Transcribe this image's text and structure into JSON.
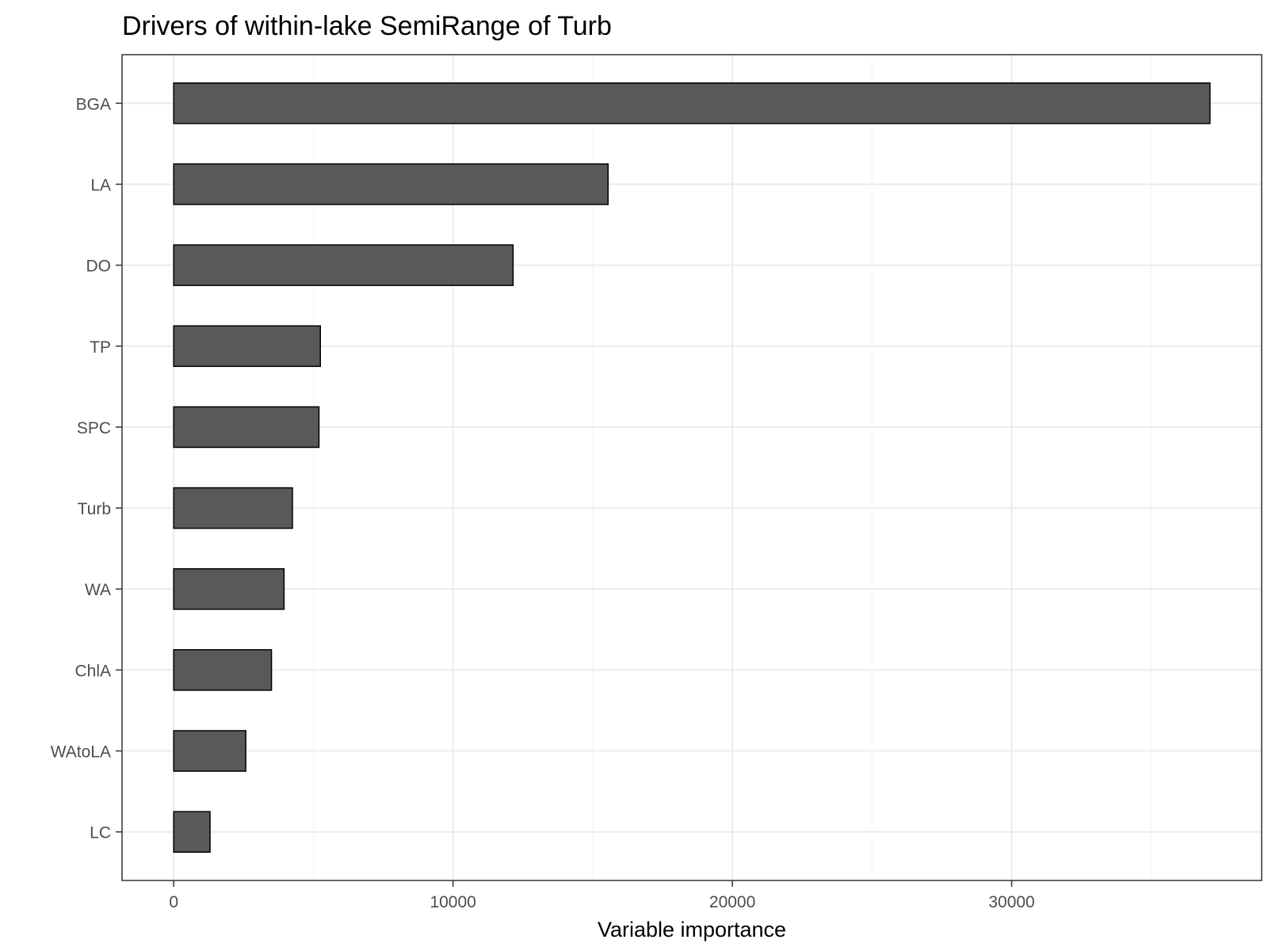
{
  "chart_data": {
    "type": "bar",
    "orientation": "horizontal",
    "title": "Drivers of within-lake SemiRange of Turb",
    "xlabel": "Variable importance",
    "ylabel": "",
    "categories": [
      "BGA",
      "LA",
      "DO",
      "TP",
      "SPC",
      "Turb",
      "WA",
      "ChlA",
      "WAtoLA",
      "LC"
    ],
    "values": [
      37100,
      15550,
      12150,
      5250,
      5200,
      4250,
      3950,
      3500,
      2580,
      1300
    ],
    "xlim": [
      -1850,
      38950
    ],
    "xticks": [
      0,
      10000,
      20000,
      30000
    ],
    "grid": true,
    "legend": "none",
    "colors": {
      "bar_fill": "#595959",
      "bar_stroke": "#000000",
      "grid_major": "#ebebeb",
      "grid_minor": "#f5f5f5",
      "panel_border": "#333333",
      "tick_label": "#4d4d4d"
    }
  }
}
